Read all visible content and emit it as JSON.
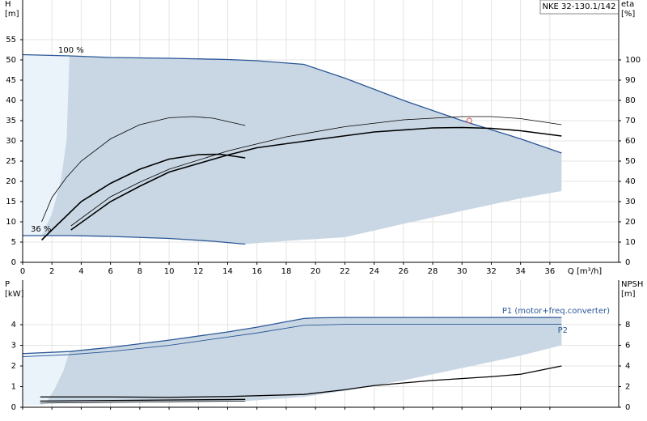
{
  "title": "NKE 32-130.1/142",
  "chart_data": [
    {
      "type": "line",
      "ylabel": [
        "H",
        "[m]"
      ],
      "y2label": [
        "eta",
        "[%]"
      ],
      "xlabel": "Q [m³/h]",
      "xlim": [
        0,
        40.7
      ],
      "xticks": [
        0,
        2,
        4,
        6,
        8,
        10,
        12,
        14,
        16,
        18,
        20,
        22,
        24,
        26,
        28,
        30,
        32,
        34,
        36
      ],
      "ylim": [
        0,
        64.8
      ],
      "yticks": [
        0,
        5,
        10,
        15,
        20,
        25,
        30,
        35,
        40,
        45,
        50,
        55
      ],
      "y2lim": [
        0,
        129.6
      ],
      "y2ticks": [
        0,
        10,
        20,
        30,
        40,
        50,
        60,
        70,
        80,
        90,
        100
      ],
      "grid": true,
      "annotations": [
        "100 %",
        "36 %"
      ],
      "regions": [
        {
          "color": "#c9d7e4",
          "x": [
            0,
            3.2,
            6,
            10,
            14,
            16,
            19.2,
            22,
            26,
            30,
            34,
            36.8,
            36.8,
            34,
            30,
            26,
            22,
            18,
            15.2,
            13,
            10,
            6,
            3.2,
            0
          ],
          "values": [
            51.3,
            51,
            50.6,
            50.4,
            50.1,
            49.8,
            48.9,
            45.5,
            40,
            35,
            30.5,
            27,
            17.6,
            15.8,
            12.7,
            9.5,
            6.2,
            5.3,
            4.5,
            5.2,
            5.9,
            6.4,
            6.6,
            6.6
          ]
        },
        {
          "color": "#eaf2fa",
          "x": [
            0,
            3.2,
            3,
            2.6,
            2,
            1.3,
            0
          ],
          "values": [
            51.3,
            51,
            30,
            20,
            12,
            6.6,
            6.6
          ]
        }
      ],
      "series": [
        {
          "color": "#2b5797",
          "width": 1.3,
          "x": [
            0,
            3.2,
            6,
            10,
            14,
            16,
            19.2,
            22,
            26,
            30,
            34,
            36.8
          ],
          "values": [
            51.3,
            51,
            50.6,
            50.4,
            50.1,
            49.8,
            48.9,
            45.5,
            40,
            35,
            30.5,
            27
          ]
        },
        {
          "color": "#2b5797",
          "width": 1.3,
          "x": [
            0,
            3.2,
            6,
            10,
            13,
            15.2
          ],
          "values": [
            6.6,
            6.6,
            6.4,
            5.9,
            5.2,
            4.5
          ]
        },
        {
          "color": "#000000",
          "width": 1.6,
          "x": [
            1.3,
            2,
            4,
            6,
            8,
            10,
            12,
            13.5,
            15.2
          ],
          "values": [
            5.5,
            8,
            15,
            19.5,
            23,
            25.5,
            26.6,
            26.7,
            25.8
          ]
        },
        {
          "color": "#000000",
          "width": 1.6,
          "x": [
            3.3,
            6,
            8,
            10,
            14,
            16,
            20,
            24,
            28,
            30,
            32,
            34,
            36.8
          ],
          "values": [
            8,
            15,
            18.8,
            22.3,
            26.5,
            28.3,
            30.3,
            32.2,
            33.2,
            33.3,
            33.1,
            32.5,
            31.2
          ]
        },
        {
          "color": "#000000",
          "width": 0.8,
          "axis": "y2",
          "x": [
            1.3,
            2,
            3,
            4,
            6,
            8,
            10,
            11.6,
            13,
            15.2
          ],
          "values": [
            20,
            32,
            42,
            50,
            61,
            68,
            71.4,
            72,
            71.2,
            67.6
          ]
        },
        {
          "color": "#000000",
          "width": 0.8,
          "axis": "y2",
          "x": [
            3.3,
            6,
            8,
            10,
            14,
            18,
            22,
            26,
            30,
            32,
            34,
            36.8
          ],
          "values": [
            18,
            32.4,
            39.6,
            46,
            55,
            62,
            67,
            70.4,
            72,
            72,
            71,
            68
          ]
        }
      ],
      "markers": [
        {
          "color": "#e05050",
          "x": 30.5,
          "y": 35
        }
      ]
    },
    {
      "type": "line",
      "ylabel": [
        "P",
        "[kW]"
      ],
      "y2label": [
        "NPSH",
        "[m]"
      ],
      "xlim": [
        0,
        40.7
      ],
      "ylim": [
        0,
        6.16
      ],
      "yticks": [
        0,
        1,
        2,
        3,
        4
      ],
      "y2lim": [
        0,
        12.32
      ],
      "y2ticks": [
        0,
        2,
        4,
        6,
        8
      ],
      "grid": true,
      "annotations": [
        "P1 (motor+freq.converter)",
        "P2"
      ],
      "regions": [
        {
          "color": "#c9d7e4",
          "x": [
            0,
            3.2,
            6,
            10,
            14,
            16,
            19.2,
            20,
            22,
            36.8,
            36.8,
            34,
            30,
            26,
            22,
            19.2,
            15.2,
            0
          ],
          "values": [
            2.6,
            2.7,
            2.9,
            3.25,
            3.65,
            3.88,
            4.3,
            4.33,
            4.35,
            4.35,
            3,
            2.5,
            1.9,
            1.3,
            0.8,
            0.5,
            0.3,
            0.2
          ]
        },
        {
          "color": "#eaf2fa",
          "x": [
            0,
            3.2,
            2.8,
            2.2,
            1.5,
            0
          ],
          "values": [
            2.6,
            2.7,
            1.8,
            0.9,
            0.1,
            0.1
          ]
        }
      ],
      "series": [
        {
          "color": "#2b5797",
          "width": 1.3,
          "x": [
            0,
            3.2,
            6,
            10,
            14,
            16,
            19.2,
            20,
            22,
            36.8
          ],
          "values": [
            2.6,
            2.7,
            2.9,
            3.25,
            3.65,
            3.88,
            4.3,
            4.33,
            4.35,
            4.35
          ]
        },
        {
          "color": "#2b5797",
          "width": 0.9,
          "x": [
            0,
            3.2,
            6,
            10,
            14,
            16,
            19.2,
            22,
            36.8
          ],
          "values": [
            2.45,
            2.55,
            2.7,
            3.0,
            3.4,
            3.6,
            3.97,
            4.02,
            4.02
          ]
        },
        {
          "color": "#000000",
          "width": 1.3,
          "axis": "y2",
          "x": [
            1.2,
            6,
            10,
            14,
            19.2,
            22,
            24,
            28,
            32,
            34,
            36.8
          ],
          "values": [
            1,
            1,
            0.96,
            1.04,
            1.24,
            1.7,
            2.1,
            2.6,
            2.96,
            3.2,
            4
          ]
        },
        {
          "color": "#000000",
          "width": 1.3,
          "x": [
            1.2,
            15.2
          ],
          "values": [
            0.3,
            0.38
          ]
        },
        {
          "color": "#000000",
          "width": 0.8,
          "x": [
            1.2,
            15.2
          ],
          "values": [
            0.2,
            0.3
          ]
        }
      ]
    }
  ]
}
